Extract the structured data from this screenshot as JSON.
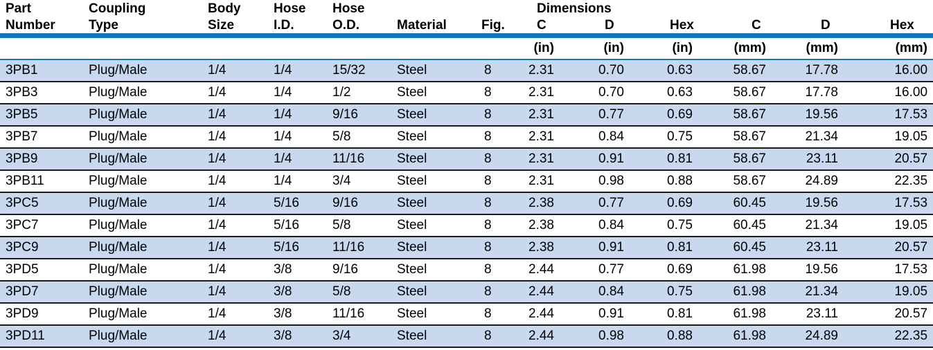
{
  "table": {
    "header": {
      "dimensions_group_label": "Dimensions",
      "columns": [
        {
          "line1": "Part",
          "line2": "Number",
          "unit": ""
        },
        {
          "line1": "Coupling",
          "line2": "Type",
          "unit": ""
        },
        {
          "line1": "Body",
          "line2": "Size",
          "unit": ""
        },
        {
          "line1": "Hose",
          "line2": "I.D.",
          "unit": ""
        },
        {
          "line1": "Hose",
          "line2": "O.D.",
          "unit": ""
        },
        {
          "line1": "",
          "line2": "Material",
          "unit": ""
        },
        {
          "line1": "",
          "line2": "Fig.",
          "unit": ""
        },
        {
          "line1": "",
          "line2": "C",
          "unit": "(in)"
        },
        {
          "line1": "",
          "line2": "D",
          "unit": "(in)"
        },
        {
          "line1": "",
          "line2": "Hex",
          "unit": "(in)"
        },
        {
          "line1": "",
          "line2": "C",
          "unit": "(mm)"
        },
        {
          "line1": "",
          "line2": "D",
          "unit": "(mm)"
        },
        {
          "line1": "",
          "line2": "Hex",
          "unit": "(mm)"
        }
      ]
    },
    "rows": [
      [
        "3PB1",
        "Plug/Male",
        "1/4",
        "1/4",
        "15/32",
        "Steel",
        "8",
        "2.31",
        "0.70",
        "0.63",
        "58.67",
        "17.78",
        "16.00"
      ],
      [
        "3PB3",
        "Plug/Male",
        "1/4",
        "1/4",
        "1/2",
        "Steel",
        "8",
        "2.31",
        "0.70",
        "0.63",
        "58.67",
        "17.78",
        "16.00"
      ],
      [
        "3PB5",
        "Plug/Male",
        "1/4",
        "1/4",
        "9/16",
        "Steel",
        "8",
        "2.31",
        "0.77",
        "0.69",
        "58.67",
        "19.56",
        "17.53"
      ],
      [
        "3PB7",
        "Plug/Male",
        "1/4",
        "1/4",
        "5/8",
        "Steel",
        "8",
        "2.31",
        "0.84",
        "0.75",
        "58.67",
        "21.34",
        "19.05"
      ],
      [
        "3PB9",
        "Plug/Male",
        "1/4",
        "1/4",
        "11/16",
        "Steel",
        "8",
        "2.31",
        "0.91",
        "0.81",
        "58.67",
        "23.11",
        "20.57"
      ],
      [
        "3PB11",
        "Plug/Male",
        "1/4",
        "1/4",
        "3/4",
        "Steel",
        "8",
        "2.31",
        "0.98",
        "0.88",
        "58.67",
        "24.89",
        "22.35"
      ],
      [
        "3PC5",
        "Plug/Male",
        "1/4",
        "5/16",
        "9/16",
        "Steel",
        "8",
        "2.38",
        "0.77",
        "0.69",
        "60.45",
        "19.56",
        "17.53"
      ],
      [
        "3PC7",
        "Plug/Male",
        "1/4",
        "5/16",
        "5/8",
        "Steel",
        "8",
        "2.38",
        "0.84",
        "0.75",
        "60.45",
        "21.34",
        "19.05"
      ],
      [
        "3PC9",
        "Plug/Male",
        "1/4",
        "5/16",
        "11/16",
        "Steel",
        "8",
        "2.38",
        "0.91",
        "0.81",
        "60.45",
        "23.11",
        "20.57"
      ],
      [
        "3PD5",
        "Plug/Male",
        "1/4",
        "3/8",
        "9/16",
        "Steel",
        "8",
        "2.44",
        "0.77",
        "0.69",
        "61.98",
        "19.56",
        "17.53"
      ],
      [
        "3PD7",
        "Plug/Male",
        "1/4",
        "3/8",
        "5/8",
        "Steel",
        "8",
        "2.44",
        "0.84",
        "0.75",
        "61.98",
        "21.34",
        "19.05"
      ],
      [
        "3PD9",
        "Plug/Male",
        "1/4",
        "3/8",
        "11/16",
        "Steel",
        "8",
        "2.44",
        "0.91",
        "0.81",
        "61.98",
        "23.11",
        "20.57"
      ],
      [
        "3PD11",
        "Plug/Male",
        "1/4",
        "3/8",
        "3/4",
        "Steel",
        "8",
        "2.44",
        "0.98",
        "0.88",
        "61.98",
        "24.89",
        "22.35"
      ]
    ]
  },
  "colors": {
    "accent_blue": "#0f76bc",
    "row_highlight_blue": "#c8d8ef",
    "row_separator": "#1a1a1a",
    "text": "#000000"
  }
}
